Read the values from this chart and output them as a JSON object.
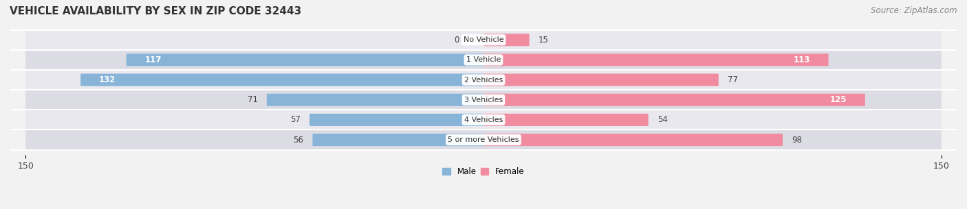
{
  "title": "VEHICLE AVAILABILITY BY SEX IN ZIP CODE 32443",
  "source": "Source: ZipAtlas.com",
  "categories": [
    "No Vehicle",
    "1 Vehicle",
    "2 Vehicles",
    "3 Vehicles",
    "4 Vehicles",
    "5 or more Vehicles"
  ],
  "male_values": [
    0,
    117,
    132,
    71,
    57,
    56
  ],
  "female_values": [
    15,
    113,
    77,
    125,
    54,
    98
  ],
  "male_color": "#88b4d8",
  "female_color": "#f08ba0",
  "bar_height": 0.62,
  "xlim": [
    -150,
    150
  ],
  "xtick_vals": [
    -150,
    150
  ],
  "background_color": "#f2f2f2",
  "row_bg_even": "#e8e8ee",
  "row_bg_odd": "#dcdce4",
  "legend_male": "Male",
  "legend_female": "Female",
  "title_fontsize": 11,
  "source_fontsize": 8.5,
  "label_fontsize": 8.5,
  "cat_fontsize": 8.0,
  "tick_fontsize": 9
}
